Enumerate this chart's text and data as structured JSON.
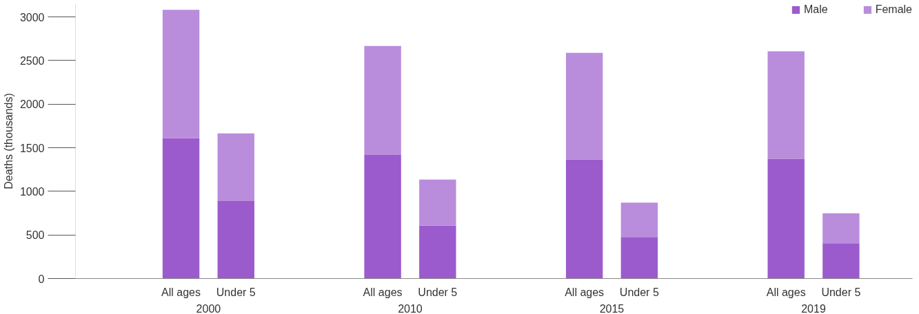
{
  "chart_data": {
    "type": "bar",
    "stacked": true,
    "ylabel": "Deaths (thousands)",
    "categories": [
      "All ages",
      "Under 5",
      "All ages",
      "Under 5",
      "All ages",
      "Under 5",
      "All ages",
      "Under 5"
    ],
    "annotations": [
      "2000",
      "2010",
      "2015",
      "2019"
    ],
    "series": [
      {
        "name": "Male",
        "color": "#9b5bcc",
        "values": [
          1610,
          889,
          1417,
          607,
          1364,
          475,
          1373,
          405
        ]
      },
      {
        "name": "Female",
        "color": "#b98ddc",
        "values": [
          1470,
          774,
          1249,
          528,
          1223,
          396,
          1232,
          343
        ]
      }
    ],
    "ylim": [
      0,
      3150
    ],
    "yticks": [
      0,
      500,
      1000,
      1500,
      2000,
      2500,
      3000
    ],
    "grid": false,
    "legend": "top right"
  }
}
